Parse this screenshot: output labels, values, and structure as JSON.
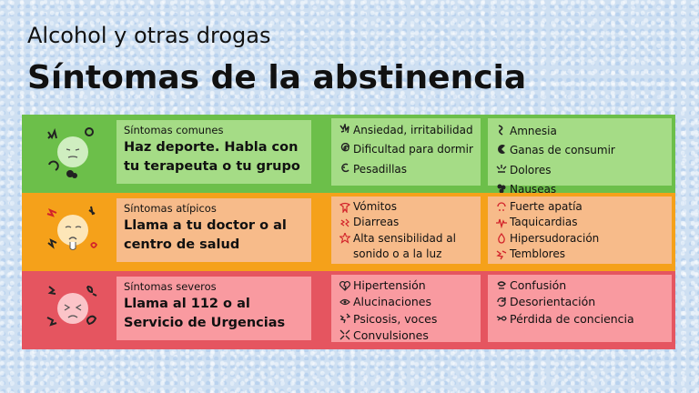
{
  "header": {
    "subtitle": "Alcohol y otras drogas",
    "title": "Síntomas de la abstinencia"
  },
  "colors": {
    "common_band": "#6cbf4a",
    "atypical_band": "#f5a11a",
    "severe_band": "#e55560",
    "icon_stroke": "#222222",
    "accent_red": "#d2232a"
  },
  "sections": [
    {
      "category": "Síntomas comunes",
      "advice": "Haz deporte. Habla con tu terapeuta o tu grupo",
      "face_icon": "calm-face-icon",
      "column1": [
        {
          "icon": "spiky-anxiety-icon",
          "text": "Ansiedad, irritabilidad"
        },
        {
          "icon": "spiral-icon",
          "text": "Dificultad para dormir"
        },
        {
          "icon": "nightmare-icon",
          "text": "Pesadillas"
        }
      ],
      "column2": [
        {
          "icon": "swirl-icon",
          "text": "Amnesia"
        },
        {
          "icon": "craving-mouth-icon",
          "text": "Ganas de consumir"
        },
        {
          "icon": "pain-lines-icon",
          "text": "Dolores"
        },
        {
          "icon": "nausea-blob-icon",
          "text": "Nauseas"
        }
      ]
    },
    {
      "category": "Síntomas atípicos",
      "advice": "Llama a tu doctor o al centro de salud",
      "face_icon": "sick-face-icon",
      "column1": [
        {
          "icon": "vomit-icon",
          "text": "Vómitos"
        },
        {
          "icon": "diarrhea-icon",
          "text": "Diarreas"
        },
        {
          "icon": "sensitivity-burst-icon",
          "text": "Alta sensibilidad al sonido o a la luz"
        }
      ],
      "column2": [
        {
          "icon": "apathy-face-icon",
          "text": "Fuerte apatía"
        },
        {
          "icon": "heartbeat-icon",
          "text": "Taquicardias"
        },
        {
          "icon": "sweat-drop-icon",
          "text": "Hipersudoración"
        },
        {
          "icon": "tremor-icon",
          "text": "Temblores"
        }
      ]
    },
    {
      "category": "Síntomas severos",
      "advice": "Llama al 112 o al Servicio de Urgencias",
      "face_icon": "distressed-face-icon",
      "column1": [
        {
          "icon": "broken-heart-icon",
          "text": "Hipertensión"
        },
        {
          "icon": "hallucination-eye-icon",
          "text": "Alucinaciones"
        },
        {
          "icon": "psychosis-scribble-icon",
          "text": "Psicosis, voces"
        },
        {
          "icon": "convulsion-icon",
          "text": "Convulsiones"
        }
      ],
      "column2": [
        {
          "icon": "confusion-icon",
          "text": "Confusión"
        },
        {
          "icon": "cycle-arrows-icon",
          "text": "Desorientación"
        },
        {
          "icon": "fainting-icon",
          "text": "Pérdida de conciencia"
        }
      ]
    }
  ]
}
